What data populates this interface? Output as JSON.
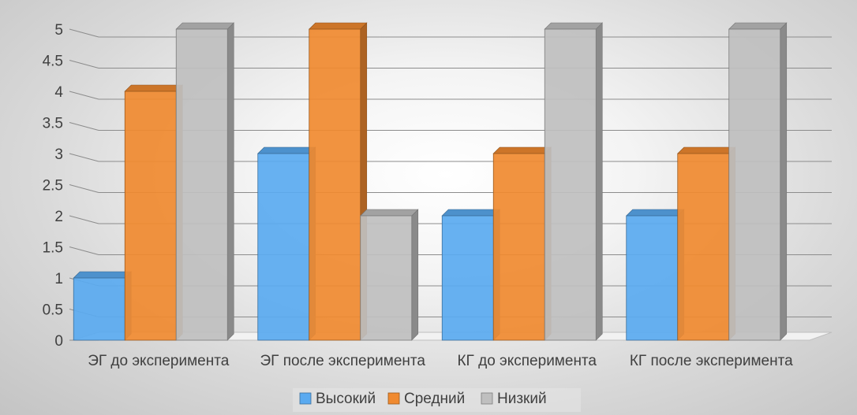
{
  "chart_data": {
    "type": "bar",
    "title": "",
    "xlabel": "",
    "ylabel": "",
    "categories": [
      "ЭГ до эксперимента",
      "ЭГ после эксперимента",
      "КГ до эксперимента",
      "КГ после эксперимента"
    ],
    "series": [
      {
        "name": "Высокий",
        "values": [
          1,
          3,
          2,
          2
        ],
        "color": "#5aaaf0"
      },
      {
        "name": "Средний",
        "values": [
          4,
          5,
          3,
          3
        ],
        "color": "#f08a30"
      },
      {
        "name": "Низкий",
        "values": [
          5,
          2,
          5,
          5
        ],
        "color": "#bfbfbf"
      }
    ],
    "ylim": [
      0,
      5
    ],
    "yticks": [
      "0",
      "0.5",
      "1",
      "1.5",
      "2",
      "2.5",
      "3",
      "3.5",
      "4",
      "4.5",
      "5"
    ],
    "grid": true,
    "legend": "bottom",
    "style": "3d-clustered-column"
  }
}
